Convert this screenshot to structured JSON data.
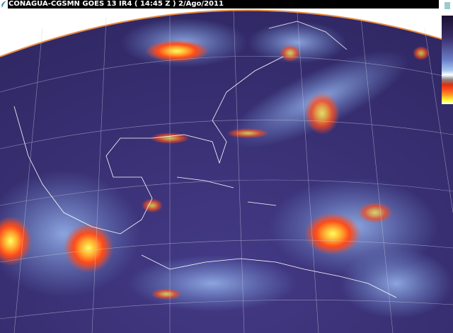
{
  "header": {
    "title": "CONAGUA-CGSMN GOES 13 IR4 ( 14:45 Z ) 2/Ago/2011"
  },
  "imagery": {
    "type": "infrared satellite image",
    "colors": {
      "background": "#3c3478",
      "cold_cloud": "#ff4a1a",
      "very_cold": "#ffff40",
      "low_cloud": "#7a9ee0"
    }
  },
  "colorbar": {
    "icon": "temperature-colorbar"
  }
}
